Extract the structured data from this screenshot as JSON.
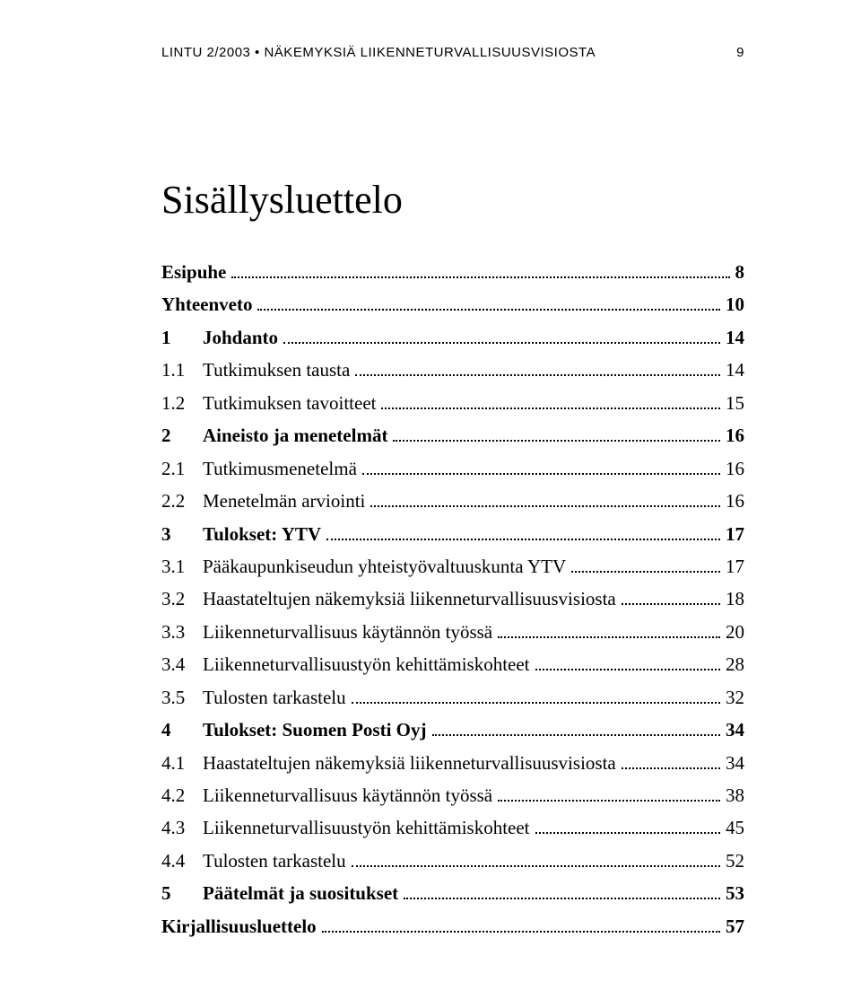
{
  "running_head": {
    "text": "LINTU 2/2003 • NÄKEMYKSIÄ LIIKENNETURVALLISUUSVISIOSTA",
    "page_number": "9"
  },
  "title": "Sisällysluettelo",
  "toc": [
    {
      "type": "entry",
      "bold": true,
      "nonum": true,
      "num": "",
      "label": "Esipuhe",
      "page": "8"
    },
    {
      "type": "entry",
      "bold": true,
      "nonum": true,
      "num": "",
      "label": "Yhteenveto",
      "page": "10"
    },
    {
      "type": "entry",
      "bold": true,
      "nonum": false,
      "num": "1",
      "label": "Johdanto",
      "page": "14"
    },
    {
      "type": "entry",
      "bold": false,
      "nonum": false,
      "num": "1.1",
      "label": "Tutkimuksen tausta",
      "page": "14"
    },
    {
      "type": "entry",
      "bold": false,
      "nonum": false,
      "num": "1.2",
      "label": "Tutkimuksen tavoitteet",
      "page": "15"
    },
    {
      "type": "entry",
      "bold": true,
      "nonum": false,
      "num": "2",
      "label": "Aineisto ja menetelmät",
      "page": "16"
    },
    {
      "type": "entry",
      "bold": false,
      "nonum": false,
      "num": "2.1",
      "label": "Tutkimusmenetelmä",
      "page": "16"
    },
    {
      "type": "entry",
      "bold": false,
      "nonum": false,
      "num": "2.2",
      "label": "Menetelmän arviointi",
      "page": "16"
    },
    {
      "type": "entry",
      "bold": true,
      "nonum": false,
      "num": "3",
      "label": "Tulokset: YTV",
      "page": "17"
    },
    {
      "type": "entry",
      "bold": false,
      "nonum": false,
      "num": "3.1",
      "label": "Pääkaupunkiseudun yhteistyövaltuuskunta YTV",
      "page": "17"
    },
    {
      "type": "entry",
      "bold": false,
      "nonum": false,
      "num": "3.2",
      "label": "Haastateltujen näkemyksiä liikenneturvallisuusvisiosta",
      "page": "18"
    },
    {
      "type": "entry",
      "bold": false,
      "nonum": false,
      "num": "3.3",
      "label": "Liikenneturvallisuus käytännön työssä",
      "page": "20"
    },
    {
      "type": "entry",
      "bold": false,
      "nonum": false,
      "num": "3.4",
      "label": "Liikenneturvallisuustyön kehittämiskohteet",
      "page": "28"
    },
    {
      "type": "entry",
      "bold": false,
      "nonum": false,
      "num": "3.5",
      "label": "Tulosten tarkastelu",
      "page": "32"
    },
    {
      "type": "entry",
      "bold": true,
      "nonum": false,
      "num": "4",
      "label": "Tulokset: Suomen Posti Oyj",
      "page": "34"
    },
    {
      "type": "entry",
      "bold": false,
      "nonum": false,
      "num": "4.1",
      "label": "Haastateltujen näkemyksiä liikenneturvallisuusvisiosta",
      "page": "34"
    },
    {
      "type": "entry",
      "bold": false,
      "nonum": false,
      "num": "4.2",
      "label": "Liikenneturvallisuus käytännön työssä",
      "page": "38"
    },
    {
      "type": "entry",
      "bold": false,
      "nonum": false,
      "num": "4.3",
      "label": "Liikenneturvallisuustyön kehittämiskohteet",
      "page": "45"
    },
    {
      "type": "entry",
      "bold": false,
      "nonum": false,
      "num": "4.4",
      "label": "Tulosten tarkastelu",
      "page": "52"
    },
    {
      "type": "entry",
      "bold": true,
      "nonum": false,
      "num": "5",
      "label": "Päätelmät ja suositukset",
      "page": "53"
    },
    {
      "type": "entry",
      "bold": true,
      "nonum": true,
      "num": "",
      "label": "Kirjallisuusluettelo",
      "page": "57"
    }
  ]
}
